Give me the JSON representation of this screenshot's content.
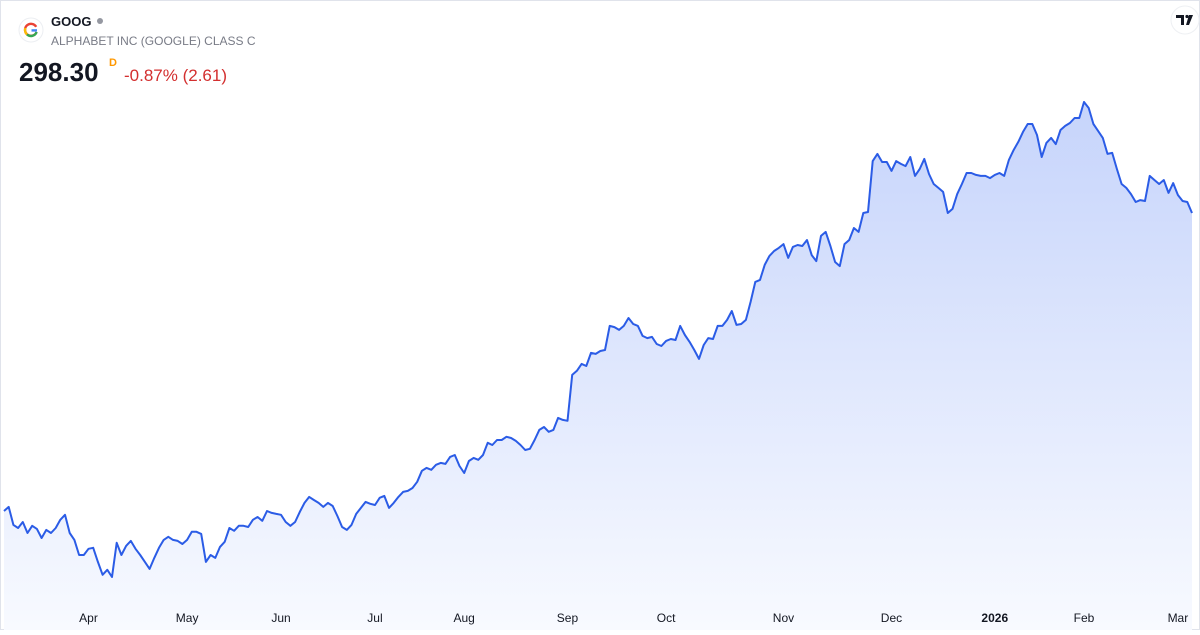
{
  "header": {
    "symbol": "GOOG",
    "name": "ALPHABET INC (GOOGLE) CLASS C",
    "price": "298.30",
    "price_flag": "D",
    "change": "-0.87% (2.61)"
  },
  "chart_data": {
    "type": "area",
    "color": "#2b5ce6",
    "values": [
      173.7,
      175.4,
      167.9,
      166.6,
      169.1,
      164.5,
      167.5,
      166.2,
      162.4,
      165.8,
      164.5,
      166.6,
      170.0,
      172.1,
      164.5,
      161.6,
      155.3,
      155.3,
      157.9,
      158.3,
      152.4,
      147.0,
      149.1,
      146.1,
      160.4,
      155.3,
      159.1,
      161.2,
      157.9,
      155.3,
      152.4,
      149.5,
      154.1,
      158.3,
      161.6,
      162.9,
      161.6,
      161.2,
      159.9,
      161.6,
      165.0,
      165.0,
      164.1,
      152.4,
      155.3,
      154.1,
      158.7,
      160.8,
      166.6,
      165.4,
      167.5,
      167.5,
      167.0,
      170.0,
      171.2,
      169.6,
      173.7,
      172.9,
      172.5,
      172.1,
      169.1,
      167.5,
      169.1,
      173.3,
      177.1,
      179.6,
      178.3,
      177.1,
      175.4,
      177.1,
      175.8,
      171.6,
      167.0,
      165.8,
      167.9,
      172.5,
      175.0,
      177.5,
      176.7,
      176.2,
      179.2,
      180.0,
      175.0,
      177.1,
      179.6,
      181.7,
      182.1,
      183.3,
      185.9,
      190.5,
      191.7,
      190.9,
      193.0,
      193.8,
      193.4,
      196.3,
      197.1,
      192.5,
      189.6,
      194.6,
      195.9,
      195.1,
      197.1,
      202.2,
      201.3,
      203.4,
      203.4,
      204.7,
      204.2,
      203.0,
      201.3,
      199.2,
      199.7,
      203.4,
      207.6,
      208.8,
      206.8,
      207.6,
      212.6,
      211.8,
      211.4,
      230.6,
      232.3,
      235.2,
      234.3,
      239.8,
      239.4,
      240.6,
      241.0,
      251.1,
      250.6,
      249.4,
      251.1,
      254.4,
      251.9,
      251.1,
      246.9,
      246.0,
      246.5,
      243.5,
      242.7,
      244.8,
      245.6,
      245.2,
      251.1,
      247.3,
      244.4,
      241.0,
      237.3,
      243.1,
      246.0,
      245.6,
      251.1,
      251.1,
      253.6,
      257.3,
      251.5,
      251.9,
      253.6,
      261.1,
      269.5,
      270.3,
      276.6,
      280.3,
      282.4,
      283.7,
      285.3,
      279.5,
      284.1,
      284.9,
      284.5,
      287.0,
      280.7,
      278.2,
      288.7,
      290.4,
      284.5,
      277.8,
      276.1,
      285.3,
      287.0,
      292.0,
      290.4,
      298.3,
      298.7,
      320.0,
      323.0,
      319.6,
      319.6,
      315.9,
      320.0,
      318.8,
      317.9,
      321.7,
      313.8,
      316.7,
      320.9,
      314.6,
      310.4,
      308.8,
      307.1,
      298.3,
      300.0,
      306.2,
      310.4,
      315.0,
      315.0,
      314.2,
      313.8,
      313.8,
      312.9,
      314.2,
      315.0,
      313.8,
      320.5,
      324.6,
      328.0,
      332.2,
      335.5,
      335.5,
      330.9,
      321.7,
      327.6,
      329.7,
      327.1,
      333.0,
      334.7,
      335.9,
      338.0,
      338.0,
      344.7,
      342.2,
      335.5,
      332.6,
      329.7,
      323.0,
      323.4,
      316.7,
      310.4,
      308.8,
      306.2,
      302.9,
      303.7,
      303.3,
      313.8,
      312.1,
      310.4,
      312.1,
      306.7,
      310.8,
      305.8,
      303.3,
      302.9,
      298.3
    ],
    "xticks": [
      {
        "value": 18,
        "label": "Apr"
      },
      {
        "value": 39,
        "label": "May"
      },
      {
        "value": 59,
        "label": "Jun"
      },
      {
        "value": 79,
        "label": "Jul"
      },
      {
        "value": 98,
        "label": "Aug"
      },
      {
        "value": 120,
        "label": "Sep"
      },
      {
        "value": 141,
        "label": "Oct"
      },
      {
        "value": 166,
        "label": "Nov"
      },
      {
        "value": 189,
        "label": "Dec"
      },
      {
        "value": 211,
        "label": "2026"
      },
      {
        "value": 230,
        "label": "Feb"
      },
      {
        "value": 250,
        "label": "Mar"
      }
    ]
  }
}
